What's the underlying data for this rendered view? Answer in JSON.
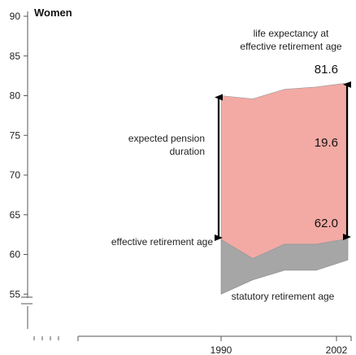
{
  "chart_data": {
    "type": "area",
    "title": "Women",
    "xlabel": "",
    "ylabel": "",
    "ylim": [
      53,
      90
    ],
    "y_ticks": [
      55,
      60,
      65,
      70,
      75,
      80,
      85,
      90
    ],
    "y_tick_labels": [
      "55",
      "60",
      "65",
      "70",
      "75",
      "80",
      "85",
      "90"
    ],
    "x_tick_labels": [
      "1990",
      "2002"
    ],
    "axis_break": true,
    "x": [
      1990,
      1993,
      1996,
      1999,
      2002
    ],
    "series": [
      {
        "name": "statutory retirement age",
        "values": [
          55.0,
          56.8,
          58.0,
          58.0,
          59.3
        ],
        "color": "#a6a6a6"
      },
      {
        "name": "effective retirement age",
        "values": [
          61.9,
          59.5,
          61.3,
          61.3,
          62.0
        ],
        "color": "#a6a6a6"
      },
      {
        "name": "life expectancy at effective retirement age",
        "values": [
          80.0,
          79.6,
          80.8,
          81.1,
          81.6
        ],
        "color": "#f3aaa4"
      }
    ],
    "annotations": {
      "life_expectancy_label_line1": "life expectancy at",
      "life_expectancy_label_line2": "effective retirement age",
      "life_expectancy_value": "81.6",
      "pension_duration_label_line1": "expected pension",
      "pension_duration_label_line2": "duration",
      "pension_duration_value": "19.6",
      "effective_age_label": "effective retirement age",
      "effective_age_value": "62.0",
      "statutory_age_label": "statutory retirement age"
    },
    "grid": false
  }
}
